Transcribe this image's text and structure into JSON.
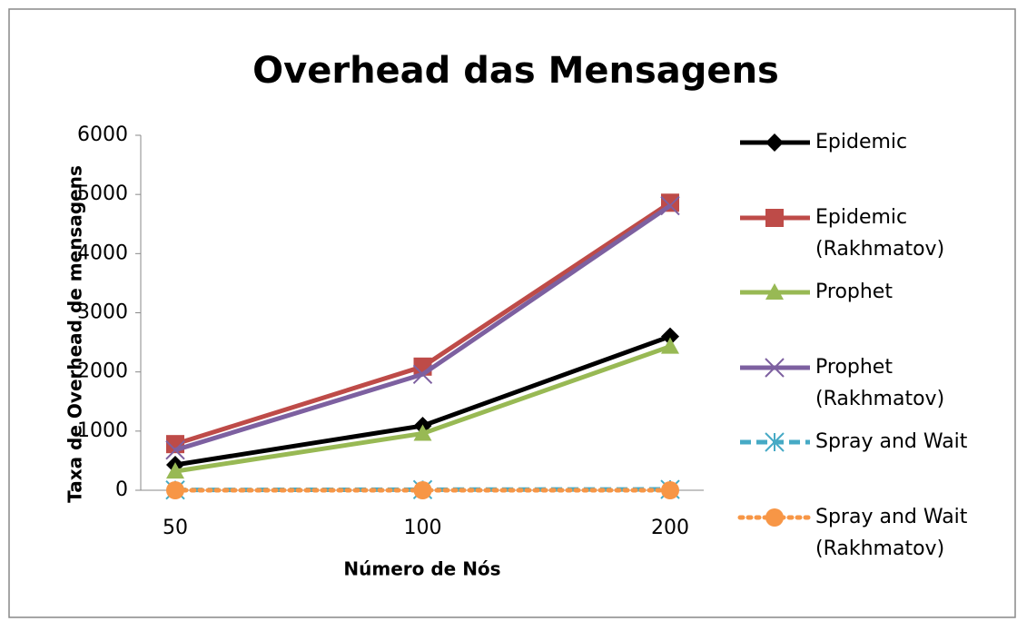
{
  "chart_data": {
    "type": "line",
    "title": "Overhead das Mensagens",
    "x_label": "Número de Nós",
    "y_label": "Taxa de Overhead de mensagens",
    "categories": [
      "50",
      "100",
      "200"
    ],
    "ylim": [
      0,
      6000
    ],
    "yticks": [
      0,
      1000,
      2000,
      3000,
      4000,
      5000,
      6000
    ],
    "legend": "right",
    "series": [
      {
        "name": "Epidemic",
        "color": "#000000",
        "marker": "diamond",
        "dash": "solid",
        "values": [
          430,
          1090,
          2600
        ]
      },
      {
        "name": "Epidemic (Rakhmatov)",
        "color": "#be4b48",
        "marker": "square",
        "dash": "solid",
        "values": [
          780,
          2090,
          4860
        ]
      },
      {
        "name": "Prophet",
        "color": "#98b954",
        "marker": "triangle",
        "dash": "solid",
        "values": [
          320,
          960,
          2430
        ]
      },
      {
        "name": "Prophet (Rakhmatov)",
        "color": "#7d60a0",
        "marker": "x",
        "dash": "solid",
        "values": [
          680,
          1960,
          4810
        ]
      },
      {
        "name": "Spray and Wait",
        "color": "#46aac5",
        "marker": "asterisk",
        "dash": "dashed",
        "values": [
          5,
          10,
          15
        ]
      },
      {
        "name": "Spray and Wait (Rakhmatov)",
        "color": "#f79646",
        "marker": "circle",
        "dash": "dotted",
        "values": [
          0,
          0,
          0
        ]
      }
    ]
  }
}
